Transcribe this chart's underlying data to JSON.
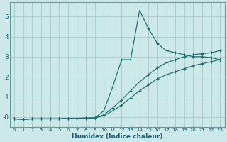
{
  "xlabel": "Humidex (Indice chaleur)",
  "bg_color": "#cce8e8",
  "grid_color": "#aacfcf",
  "line_color": "#1a6e6e",
  "xlim": [
    -0.5,
    23.5
  ],
  "ylim": [
    -0.5,
    5.7
  ],
  "xticks": [
    0,
    1,
    2,
    3,
    4,
    5,
    6,
    7,
    8,
    9,
    10,
    11,
    12,
    13,
    14,
    15,
    16,
    17,
    18,
    19,
    20,
    21,
    22,
    23
  ],
  "yticks": [
    0,
    1,
    2,
    3,
    4,
    5
  ],
  "ytick_labels": [
    "-0",
    "1",
    "2",
    "3",
    "4",
    "5"
  ],
  "series": [
    {
      "comment": "spiky line - spikes up to 5.3 at x=14",
      "x": [
        0,
        1,
        2,
        3,
        4,
        5,
        6,
        7,
        8,
        9,
        10,
        11,
        12,
        13,
        14,
        15,
        16,
        17,
        18,
        19,
        20,
        21,
        22,
        23
      ],
      "y": [
        -0.1,
        -0.12,
        -0.1,
        -0.1,
        -0.1,
        -0.1,
        -0.08,
        -0.08,
        -0.07,
        -0.06,
        0.3,
        1.5,
        2.85,
        2.85,
        5.3,
        4.4,
        3.65,
        3.3,
        3.2,
        3.1,
        3.0,
        3.0,
        2.95,
        2.85
      ]
    },
    {
      "comment": "middle-high line - nearly straight to ~3.3",
      "x": [
        0,
        1,
        2,
        3,
        4,
        5,
        6,
        7,
        8,
        9,
        10,
        11,
        12,
        13,
        14,
        15,
        16,
        17,
        18,
        19,
        20,
        21,
        22,
        23
      ],
      "y": [
        -0.1,
        -0.12,
        -0.1,
        -0.1,
        -0.1,
        -0.1,
        -0.08,
        -0.07,
        -0.06,
        -0.05,
        0.1,
        0.45,
        0.85,
        1.3,
        1.75,
        2.1,
        2.45,
        2.7,
        2.85,
        3.0,
        3.1,
        3.15,
        3.2,
        3.3
      ]
    },
    {
      "comment": "bottom line - nearly straight to ~2.85",
      "x": [
        0,
        1,
        2,
        3,
        4,
        5,
        6,
        7,
        8,
        9,
        10,
        11,
        12,
        13,
        14,
        15,
        16,
        17,
        18,
        19,
        20,
        21,
        22,
        23
      ],
      "y": [
        -0.1,
        -0.12,
        -0.1,
        -0.1,
        -0.1,
        -0.1,
        -0.08,
        -0.07,
        -0.06,
        -0.05,
        0.05,
        0.3,
        0.6,
        0.95,
        1.3,
        1.6,
        1.9,
        2.1,
        2.25,
        2.4,
        2.55,
        2.65,
        2.75,
        2.85
      ]
    }
  ]
}
